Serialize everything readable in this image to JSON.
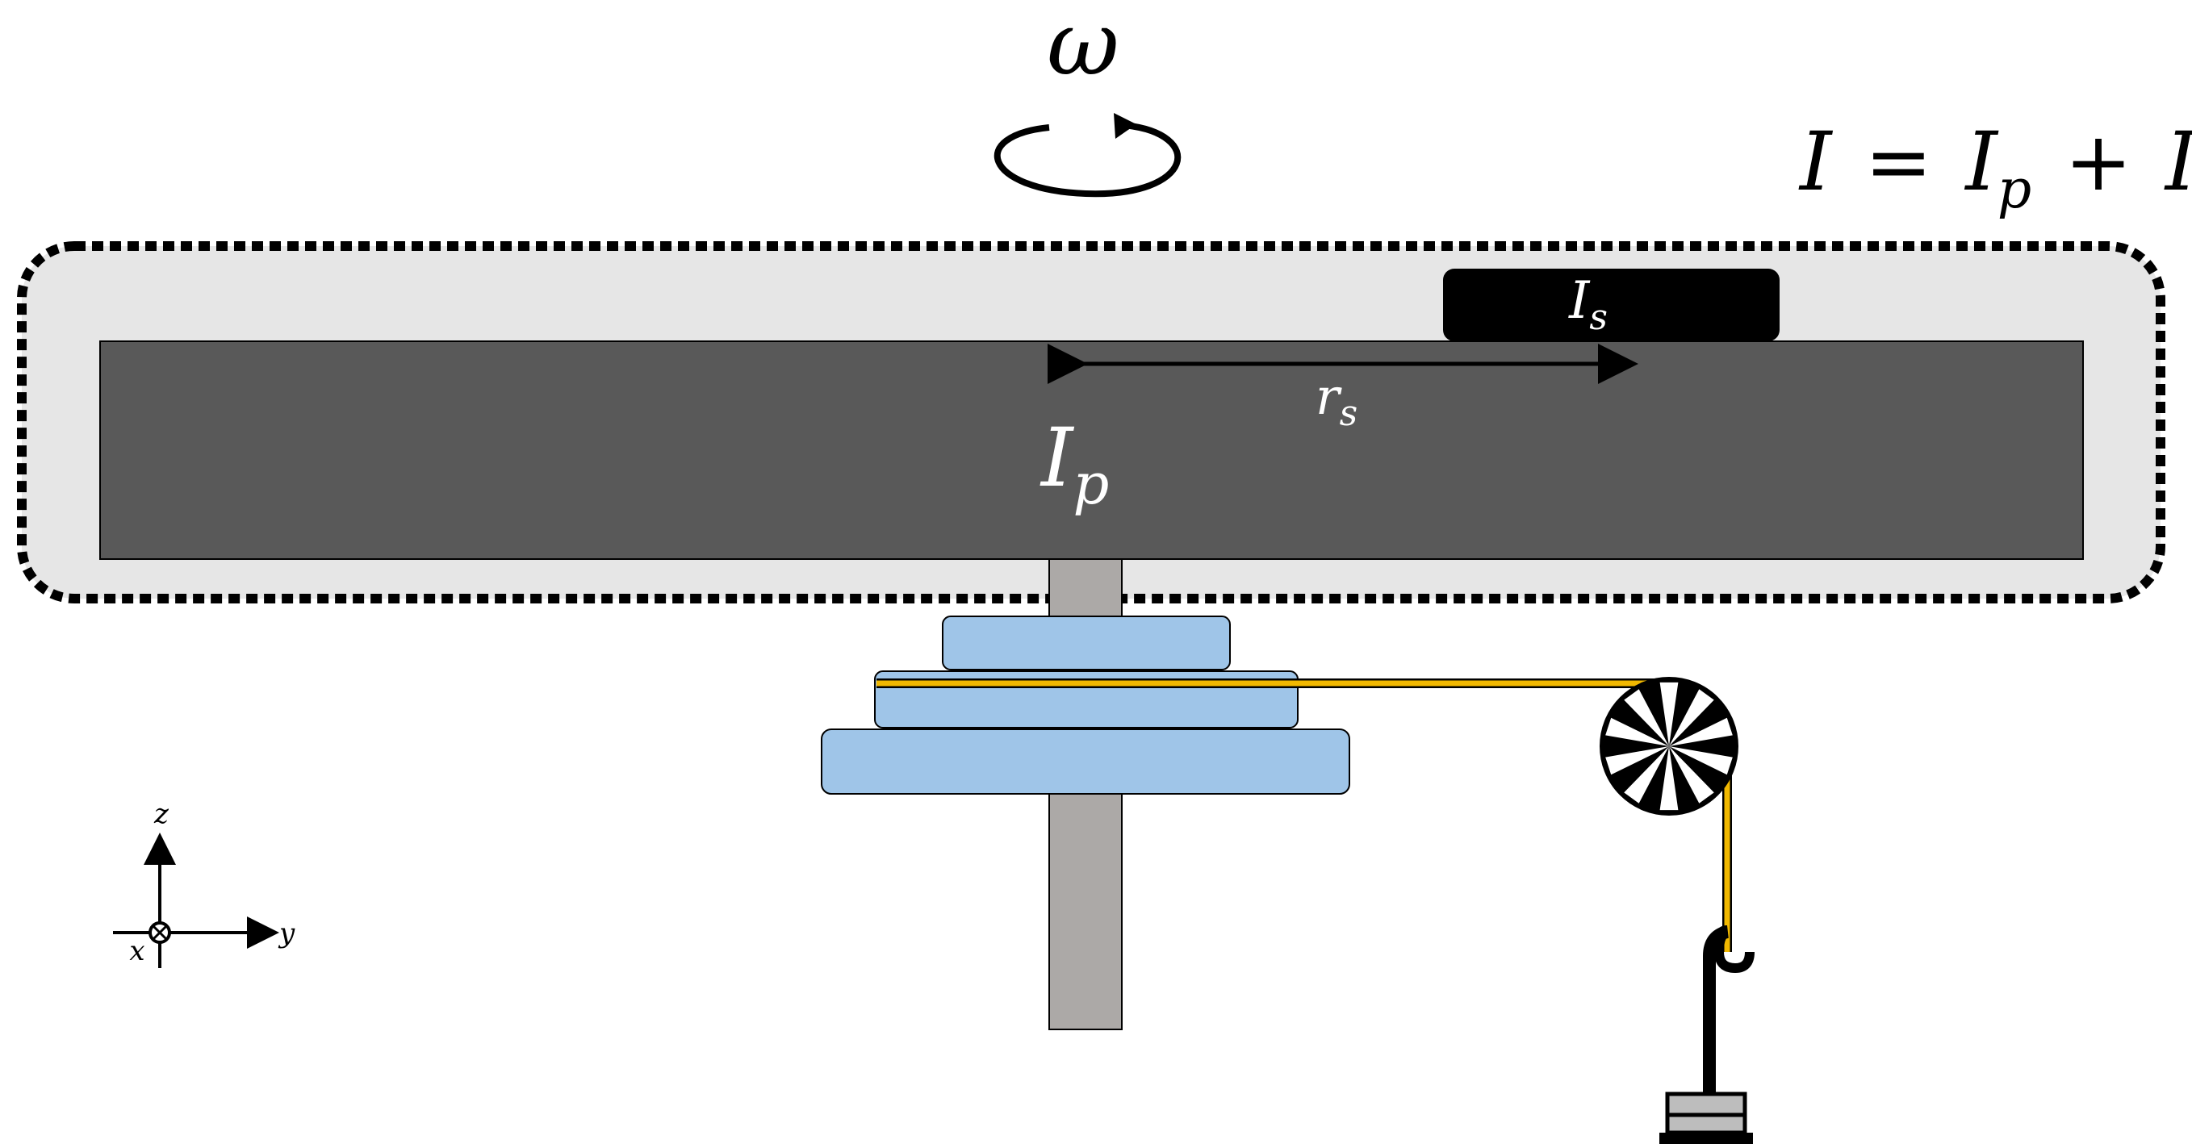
{
  "labels": {
    "omega": "ω",
    "total_inertia_lhs": "I",
    "equals": "=",
    "plus": "+",
    "I_main": "I",
    "sub_p": "p",
    "sub_s": "s",
    "r_main": "r",
    "axis_z": "z",
    "axis_y": "y",
    "axis_x": "x"
  },
  "colors": {
    "platform": "#595959",
    "system_region": "#e6e6e6",
    "shaft": "#aca9a7",
    "pulley_disks": "#9fc5e8",
    "string": "#f1b800",
    "sample": "#000000",
    "outline": "#000000"
  },
  "icons": {
    "rotation": "counterclockwise-arrow-icon",
    "pulley": "spoked-pulley-icon",
    "hanging_mass": "slotted-weight-icon",
    "axes": "coordinate-axes-icon"
  }
}
